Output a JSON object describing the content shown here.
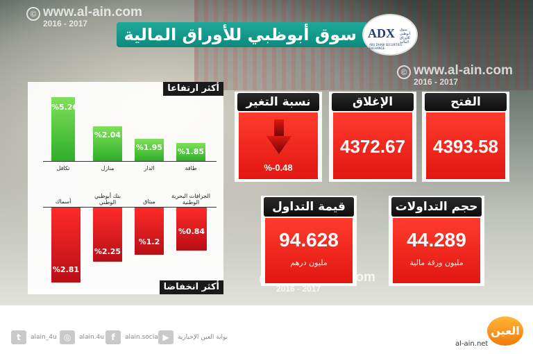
{
  "header": {
    "title": "سوق أبوظبي للأوراق المالية",
    "logo_main": "ADX",
    "logo_sub": "سوق أبوظبي للأوراق المالية",
    "logo_en": "ABU DHABI SECURITIES EXCHANGE"
  },
  "watermark": {
    "url": "www.al-ain.com",
    "years": "2016 - 2017"
  },
  "gainers": {
    "label": "أكثر ارتفاعا",
    "items": [
      {
        "name": "تكافل",
        "value": "%5.26"
      },
      {
        "name": "منازل",
        "value": "%2.04"
      },
      {
        "name": "الدار",
        "value": "%1.95"
      },
      {
        "name": "طاقة",
        "value": "%1.85"
      }
    ]
  },
  "losers": {
    "label": "أكثر انخفاضا",
    "items": [
      {
        "name": "أسماك",
        "value": "%2.81"
      },
      {
        "name": "بنك أبوظبي الوطني",
        "value": "%2.25"
      },
      {
        "name": "ميثاق",
        "value": "%1.2"
      },
      {
        "name": "الجرافات البحرية الوطنية",
        "value": "%0.84"
      }
    ]
  },
  "cards": {
    "change_label": "نسبة التغير",
    "change_value": "%-0.48",
    "close_label": "الإغلاق",
    "close_value": "4372.67",
    "open_label": "الفتح",
    "open_value": "4393.58",
    "trade_value_label": "قيمة التداول",
    "trade_value": "94.628",
    "trade_value_unit": "مليون درهم",
    "volume_label": "حجم التداولات",
    "volume_value": "44.289",
    "volume_unit": "مليون ورقة مالية"
  },
  "footer": {
    "twitter": "alain_4u",
    "instagram": "alain.4u",
    "facebook": "alain.social",
    "youtube": "بوابة العين الإخبارية",
    "site": "al-ain.net",
    "logo_text": "العين"
  },
  "colors": {
    "teal": "#12998a",
    "red": "#e11712",
    "green": "#2fae2a",
    "dark": "#111111"
  }
}
